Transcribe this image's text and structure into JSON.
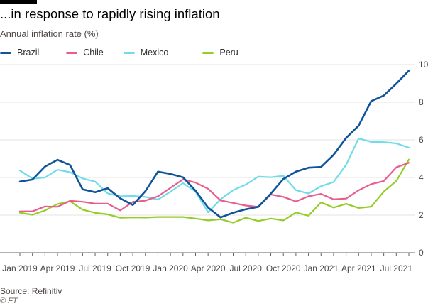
{
  "title": "...in response to rapidly rising inflation",
  "subtitle": "Annual inflation rate (%)",
  "source": "Source: Refinitiv",
  "credit": "© FT",
  "chart_data": {
    "type": "line",
    "ylabel": "Annual inflation rate (%)",
    "ylim": [
      0,
      10
    ],
    "yticks": [
      "0",
      "2",
      "4",
      "6",
      "8",
      "10"
    ],
    "x_months": [
      "Jan 2019",
      "Feb 2019",
      "Mar 2019",
      "Apr 2019",
      "May 2019",
      "Jun 2019",
      "Jul 2019",
      "Aug 2019",
      "Sep 2019",
      "Oct 2019",
      "Nov 2019",
      "Dec 2019",
      "Jan 2020",
      "Feb 2020",
      "Mar 2020",
      "Apr 2020",
      "May 2020",
      "Jun 2020",
      "Jul 2020",
      "Aug 2020",
      "Sep 2020",
      "Oct 2020",
      "Nov 2020",
      "Dec 2020",
      "Jan 2021",
      "Feb 2021",
      "Mar 2021",
      "Apr 2021",
      "May 2021",
      "Jun 2021",
      "Jul 2021",
      "Aug 2021"
    ],
    "xtick_labels": [
      "Jan 2019",
      "Apr 2019",
      "Jul 2019",
      "Oct 2019",
      "Jan 2020",
      "Apr 2020",
      "Jul 2020",
      "Oct 2020",
      "Jan 2021",
      "Apr 2021",
      "Jul 2021"
    ],
    "grid": true,
    "legend_position": "top-left",
    "series": [
      {
        "name": "Brazil",
        "color": "#0f5499",
        "values": [
          3.78,
          3.89,
          4.58,
          4.94,
          4.66,
          3.37,
          3.22,
          3.43,
          2.89,
          2.54,
          3.27,
          4.31,
          4.19,
          4.01,
          3.3,
          2.4,
          1.88,
          2.13,
          2.31,
          2.44,
          3.14,
          3.92,
          4.31,
          4.52,
          4.56,
          5.2,
          6.1,
          6.76,
          8.06,
          8.35,
          8.99,
          9.68
        ]
      },
      {
        "name": "Chile",
        "color": "#e95d8c",
        "values": [
          2.2,
          2.2,
          2.46,
          2.44,
          2.76,
          2.71,
          2.61,
          2.61,
          2.25,
          2.7,
          2.77,
          3.0,
          3.45,
          3.9,
          3.73,
          3.4,
          2.78,
          2.65,
          2.51,
          2.44,
          3.1,
          2.97,
          2.73,
          3.0,
          3.13,
          2.84,
          2.88,
          3.32,
          3.65,
          3.81,
          4.54,
          4.78
        ]
      },
      {
        "name": "Mexico",
        "color": "#70dce9",
        "values": [
          4.37,
          3.94,
          4.0,
          4.41,
          4.28,
          3.95,
          3.78,
          3.16,
          3.0,
          3.02,
          2.97,
          2.83,
          3.24,
          3.7,
          3.25,
          2.15,
          2.84,
          3.33,
          3.62,
          4.05,
          4.01,
          4.09,
          3.33,
          3.15,
          3.54,
          3.76,
          4.67,
          6.08,
          5.89,
          5.88,
          5.81,
          5.59
        ]
      },
      {
        "name": "Peru",
        "color": "#96cc28",
        "values": [
          2.13,
          2.02,
          2.25,
          2.59,
          2.74,
          2.29,
          2.12,
          2.04,
          1.86,
          1.88,
          1.87,
          1.9,
          1.9,
          1.9,
          1.82,
          1.72,
          1.78,
          1.6,
          1.86,
          1.69,
          1.82,
          1.72,
          2.14,
          1.97,
          2.68,
          2.4,
          2.6,
          2.38,
          2.45,
          3.25,
          3.81,
          4.95
        ]
      }
    ]
  }
}
